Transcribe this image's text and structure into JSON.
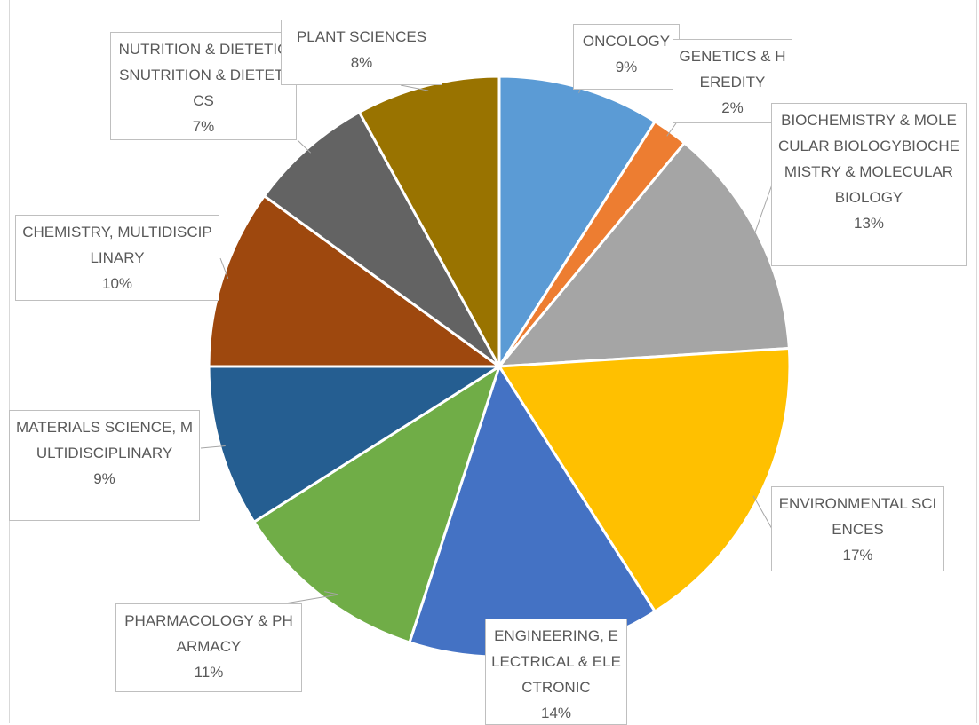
{
  "chart_data": {
    "type": "pie",
    "title": "",
    "slices": [
      {
        "label": "ONCOLOGY",
        "value": 9,
        "value_label": "9%",
        "color": "#5B9BD5"
      },
      {
        "label": "GENETICS & HEREDITY",
        "value": 2,
        "value_label": "2%",
        "color": "#ED7D31"
      },
      {
        "label": "BIOCHEMISTRY & MOLECULAR BIOLOGYBIOCHEMISTRY & MOLECULAR BIOLOGY",
        "value": 13,
        "value_label": "13%",
        "color": "#A5A5A5"
      },
      {
        "label": "ENVIRONMENTAL SCIENCES",
        "value": 17,
        "value_label": "17%",
        "color": "#FFC000"
      },
      {
        "label": "ENGINEERING, ELECTRICAL & ELECTRONIC",
        "value": 14,
        "value_label": "14%",
        "color": "#4472C4"
      },
      {
        "label": "PHARMACOLOGY & PHARMACY",
        "value": 11,
        "value_label": "11%",
        "color": "#70AD47"
      },
      {
        "label": "MATERIALS SCIENCE, MULTIDISCIPLINARY",
        "value": 9,
        "value_label": "9%",
        "color": "#255E91"
      },
      {
        "label": "CHEMISTRY, MULTIDISCIPLINARY",
        "value": 10,
        "value_label": "10%",
        "color": "#9E480E"
      },
      {
        "label": "NUTRITION & DIETETICSNUTRITION & DIETETICS",
        "value": 7,
        "value_label": "7%",
        "color": "#636363"
      },
      {
        "label": "PLANT SCIENCES",
        "value": 8,
        "value_label": "8%",
        "color": "#997300"
      }
    ],
    "start_angle_deg": 0,
    "direction": "clockwise",
    "legend": "none"
  }
}
